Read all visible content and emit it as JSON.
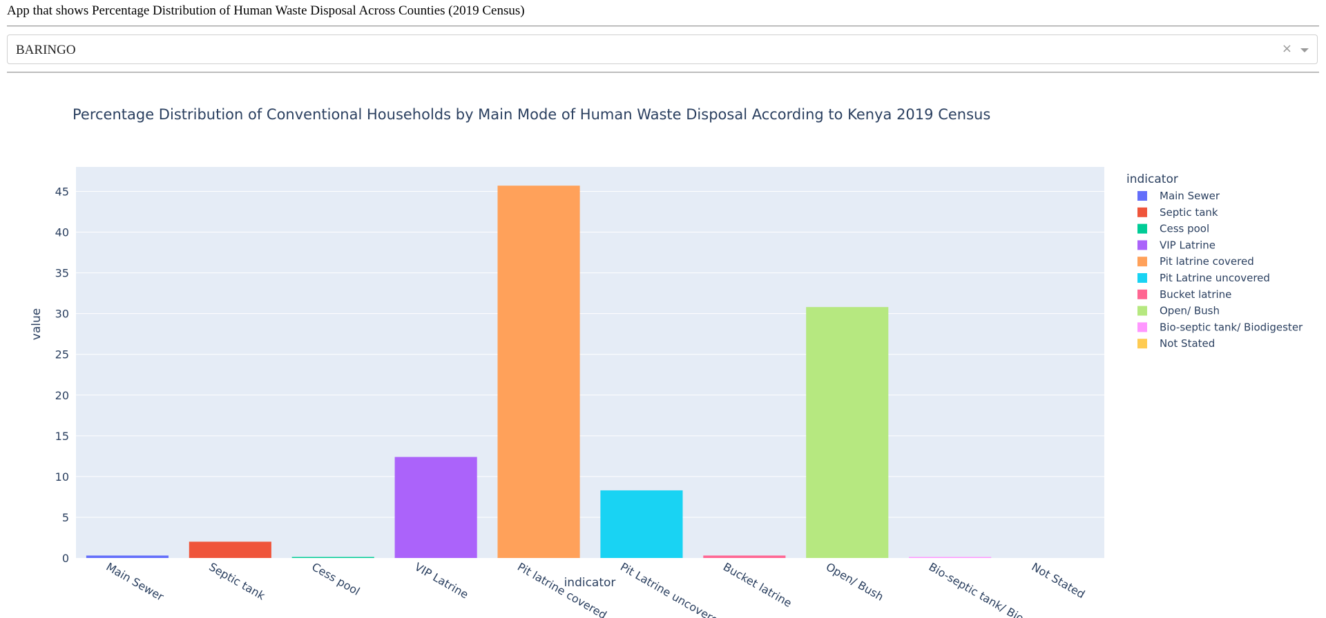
{
  "app": {
    "title": "App that shows Percentage Distribution of Human Waste Disposal Across Counties (2019 Census)"
  },
  "dropdown": {
    "selected": "BARINGO",
    "clear_glyph": "×"
  },
  "chart_data": {
    "type": "bar",
    "title": "Percentage Distribution of Conventional Households by Main Mode of Human Waste Disposal According to Kenya 2019 Census",
    "xlabel": "indicator",
    "ylabel": "value",
    "ylim": [
      0,
      48
    ],
    "yticks": [
      0,
      5,
      10,
      15,
      20,
      25,
      30,
      35,
      40,
      45
    ],
    "grid": true,
    "legend_title": "indicator",
    "legend_position": "right",
    "categories": [
      "Main Sewer",
      "Septic tank",
      "Cess pool",
      "VIP Latrine",
      "Pit latrine covered",
      "Pit Latrine uncovered",
      "Bucket latrine",
      "Open/ Bush",
      "Bio-septic tank/ Biodigester",
      "Not Stated"
    ],
    "values": [
      0.3,
      2.0,
      0.1,
      12.4,
      45.7,
      8.3,
      0.3,
      30.8,
      0.1,
      0.0
    ],
    "colors": [
      "#636efa",
      "#EF553B",
      "#00cc96",
      "#ab63fa",
      "#FFA15A",
      "#19d3f3",
      "#FF6692",
      "#B6E880",
      "#FF97FF",
      "#FECB52"
    ],
    "plot_bg": "#E5ECF6"
  }
}
